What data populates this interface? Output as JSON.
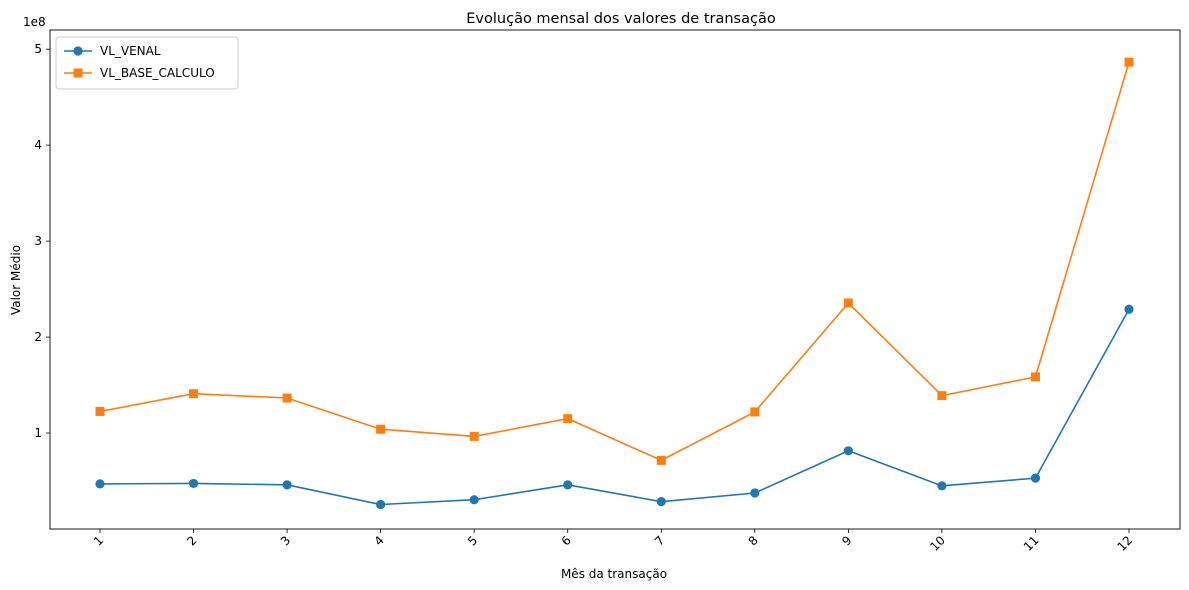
{
  "chart_data": {
    "type": "line",
    "title": "Evolução mensal dos valores de transação",
    "xlabel": "Mês da transação",
    "ylabel": "Valor Médio",
    "y_offset_text": "1e8",
    "categories": [
      "1",
      "2",
      "3",
      "4",
      "5",
      "6",
      "7",
      "8",
      "9",
      "10",
      "11",
      "12"
    ],
    "yticks": [
      {
        "value": 100000000,
        "label": "1"
      },
      {
        "value": 200000000,
        "label": "2"
      },
      {
        "value": 300000000,
        "label": "3"
      },
      {
        "value": 400000000,
        "label": "4"
      },
      {
        "value": 500000000,
        "label": "5"
      }
    ],
    "ylim": [
      0,
      520000000
    ],
    "xtick_rotation_deg": 45,
    "grid": false,
    "legend_position": "top-left",
    "series": [
      {
        "name": "VL_VENAL",
        "color": "#1f77b4",
        "marker": "circle",
        "values": [
          47000000,
          47500000,
          46000000,
          25500000,
          30500000,
          46000000,
          28500000,
          37500000,
          81500000,
          45000000,
          53000000,
          229000000
        ]
      },
      {
        "name": "VL_BASE_CALCULO",
        "color": "#ff7f0e",
        "marker": "square",
        "values": [
          122500000,
          141000000,
          136500000,
          104000000,
          96500000,
          115000000,
          71500000,
          122000000,
          235500000,
          139000000,
          158500000,
          486500000
        ]
      }
    ]
  }
}
